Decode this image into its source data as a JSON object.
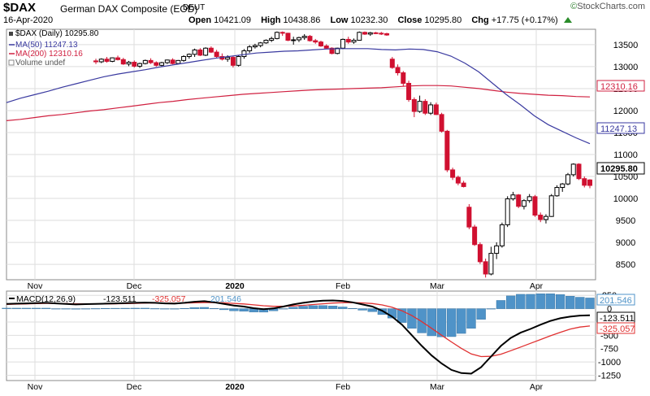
{
  "header": {
    "symbol": "$DAX",
    "name": "German DAX Composite (EOD)",
    "exchange": "DEUT",
    "date": "16-Apr-2020",
    "open_label": "Open",
    "open": "10421.09",
    "high_label": "High",
    "high": "10438.86",
    "low_label": "Low",
    "low": "10232.30",
    "close_label": "Close",
    "close": "10295.80",
    "chg_label": "Chg",
    "chg": "+17.75 (+0.17%)",
    "brand": "StockCharts.com"
  },
  "legend": {
    "price": "$DAX (Daily) 10295.80",
    "ma50": "MA(50) 11247.13",
    "ma200": "MA(200) 12310.16",
    "volume": "Volume undef",
    "macd_label": "MACD(12,26,9)",
    "macd_v1": "-123.511",
    "macd_v2": "-325.057",
    "macd_v3": "201.546"
  },
  "tags": {
    "ma200": "12310.16",
    "ma50": "11247.13",
    "close": "10295.80",
    "hist": "201.546",
    "macd": "-123.511",
    "signal": "-325.057"
  },
  "colors": {
    "up": "#000000",
    "down": "#d01030",
    "ma50": "#3a3aa0",
    "ma200": "#d02040",
    "macd": "#000000",
    "signal": "#e03030",
    "hist": "#4f93c8",
    "grid": "#dddddd"
  },
  "chart_data": [
    {
      "type": "candlestick",
      "title": "$DAX (Daily)",
      "x_ticks": [
        "Nov",
        "Dec",
        "2020",
        "Feb",
        "Mar",
        "Apr"
      ],
      "y_ticks": [
        8500,
        9000,
        9500,
        10000,
        10500,
        11000,
        11500,
        12000,
        12500,
        13000,
        13500
      ],
      "ylim": [
        8150,
        13850
      ],
      "series": [
        {
          "name": "MA(50)",
          "values": [
            12180,
            12280,
            12360,
            12440,
            12530,
            12610,
            12690,
            12770,
            12830,
            12880,
            12930,
            12990,
            13040,
            13090,
            13140,
            13190,
            13230,
            13270,
            13310,
            13330,
            13350,
            13360,
            13380,
            13400,
            13410,
            13410,
            13410,
            13390,
            13380,
            13400,
            13390,
            13340,
            13240,
            13080,
            12880,
            12620,
            12360,
            12130,
            11880,
            11680,
            11530,
            11380,
            11247
          ]
        },
        {
          "name": "MA(200)",
          "values": [
            11770,
            11800,
            11840,
            11880,
            11910,
            11950,
            11990,
            12020,
            12060,
            12100,
            12140,
            12180,
            12210,
            12250,
            12280,
            12310,
            12340,
            12370,
            12390,
            12410,
            12430,
            12450,
            12470,
            12480,
            12490,
            12500,
            12510,
            12520,
            12540,
            12560,
            12570,
            12570,
            12560,
            12530,
            12500,
            12460,
            12420,
            12390,
            12370,
            12350,
            12340,
            12320,
            12310
          ]
        }
      ],
      "candles": [
        [
          13130,
          13180,
          13060,
          13110
        ],
        [
          13110,
          13190,
          13080,
          13170
        ],
        [
          13170,
          13220,
          13090,
          13120
        ],
        [
          13120,
          13210,
          13100,
          13200
        ],
        [
          13200,
          13250,
          13140,
          13160
        ],
        [
          13160,
          13200,
          13040,
          13060
        ],
        [
          13060,
          13130,
          13010,
          13100
        ],
        [
          13100,
          13140,
          12980,
          13010
        ],
        [
          13010,
          13090,
          12970,
          13070
        ],
        [
          13070,
          13160,
          13050,
          13140
        ],
        [
          13140,
          13190,
          13060,
          13090
        ],
        [
          13090,
          13120,
          13000,
          13030
        ],
        [
          13030,
          13110,
          13000,
          13090
        ],
        [
          13090,
          13160,
          13060,
          13150
        ],
        [
          13150,
          13190,
          13050,
          13070
        ],
        [
          13070,
          13150,
          13060,
          13140
        ],
        [
          13140,
          13260,
          13110,
          13230
        ],
        [
          13230,
          13300,
          13180,
          13280
        ],
        [
          13280,
          13410,
          13220,
          13380
        ],
        [
          13380,
          13420,
          13240,
          13260
        ],
        [
          13260,
          13440,
          13240,
          13420
        ],
        [
          13420,
          13460,
          13310,
          13330
        ],
        [
          13330,
          13380,
          13190,
          13230
        ],
        [
          13230,
          13300,
          13140,
          13170
        ],
        [
          13170,
          13260,
          13110,
          13210
        ],
        [
          13210,
          13240,
          12980,
          13030
        ],
        [
          13030,
          13260,
          13000,
          13230
        ],
        [
          13230,
          13400,
          13180,
          13360
        ],
        [
          13360,
          13490,
          13310,
          13450
        ],
        [
          13450,
          13520,
          13410,
          13480
        ],
        [
          13480,
          13560,
          13440,
          13540
        ],
        [
          13540,
          13620,
          13520,
          13600
        ],
        [
          13600,
          13680,
          13560,
          13640
        ],
        [
          13640,
          13800,
          13620,
          13780
        ],
        [
          13780,
          13800,
          13700,
          13760
        ],
        [
          13760,
          13770,
          13580,
          13600
        ],
        [
          13600,
          13680,
          13500,
          13610
        ],
        [
          13610,
          13680,
          13560,
          13660
        ],
        [
          13660,
          13740,
          13610,
          13690
        ],
        [
          13690,
          13720,
          13570,
          13590
        ],
        [
          13590,
          13630,
          13520,
          13560
        ],
        [
          13560,
          13590,
          13450,
          13470
        ],
        [
          13470,
          13510,
          13400,
          13420
        ],
        [
          13420,
          13440,
          13280,
          13300
        ],
        [
          13300,
          13430,
          13280,
          13420
        ],
        [
          13420,
          13640,
          13400,
          13620
        ],
        [
          13620,
          13680,
          13520,
          13560
        ],
        [
          13560,
          13640,
          13520,
          13600
        ],
        [
          13600,
          13800,
          13590,
          13780
        ],
        [
          13780,
          13800,
          13720,
          13740
        ],
        [
          13740,
          13790,
          13700,
          13770
        ],
        [
          13770,
          13790,
          13740,
          13760
        ],
        [
          13760,
          13790,
          13720,
          13750
        ],
        [
          13750,
          13770,
          13700,
          13720
        ],
        [
          13170,
          13220,
          12950,
          12980
        ],
        [
          12980,
          13050,
          12800,
          12860
        ],
        [
          12860,
          12900,
          12550,
          12620
        ],
        [
          12620,
          12680,
          12200,
          12250
        ],
        [
          12250,
          12300,
          11850,
          11980
        ],
        [
          11980,
          12340,
          11950,
          12210
        ],
        [
          12210,
          12260,
          11900,
          11940
        ],
        [
          11940,
          12190,
          11900,
          12130
        ],
        [
          12130,
          12180,
          11900,
          11910
        ],
        [
          11910,
          11950,
          11500,
          11530
        ],
        [
          11530,
          11560,
          10600,
          10650
        ],
        [
          10650,
          10700,
          10420,
          10480
        ],
        [
          10480,
          10520,
          10300,
          10350
        ],
        [
          10350,
          10400,
          10250,
          10270
        ],
        [
          9800,
          9870,
          9300,
          9350
        ],
        [
          9350,
          9400,
          8920,
          8950
        ],
        [
          8950,
          9000,
          8510,
          8560
        ],
        [
          8560,
          8630,
          8200,
          8280
        ],
        [
          8280,
          8900,
          8250,
          8750
        ],
        [
          8750,
          9000,
          8620,
          8920
        ],
        [
          8920,
          9450,
          8880,
          9400
        ],
        [
          9400,
          10050,
          9350,
          9990
        ],
        [
          9990,
          10150,
          9950,
          10080
        ],
        [
          10080,
          10100,
          9780,
          9820
        ],
        [
          9820,
          9980,
          9750,
          9950
        ],
        [
          9950,
          10100,
          9900,
          10040
        ],
        [
          10040,
          10080,
          9580,
          9620
        ],
        [
          9620,
          9680,
          9460,
          9520
        ],
        [
          9520,
          9640,
          9430,
          9590
        ],
        [
          9590,
          10100,
          9580,
          10060
        ],
        [
          10060,
          10300,
          10040,
          10250
        ],
        [
          10250,
          10350,
          10150,
          10330
        ],
        [
          10330,
          10580,
          10300,
          10540
        ],
        [
          10540,
          10800,
          10500,
          10780
        ],
        [
          10780,
          10800,
          10420,
          10450
        ],
        [
          10450,
          10500,
          10250,
          10300
        ],
        [
          10421,
          10439,
          10232,
          10296
        ]
      ]
    },
    {
      "type": "line",
      "title": "MACD(12,26,9)",
      "x_ticks": [
        "Nov",
        "Dec",
        "2020",
        "Feb",
        "Mar",
        "Apr"
      ],
      "y_ticks": [
        250,
        0,
        -250,
        -500,
        -750,
        -1000,
        -1250
      ],
      "ylim": [
        -1350,
        330
      ],
      "series": [
        {
          "name": "MACD",
          "values": [
            90,
            95,
            100,
            105,
            110,
            100,
            90,
            80,
            85,
            90,
            95,
            100,
            105,
            110,
            115,
            110,
            100,
            95,
            110,
            130,
            140,
            120,
            90,
            60,
            40,
            10,
            -10,
            5,
            40,
            80,
            110,
            135,
            150,
            155,
            145,
            120,
            80,
            40,
            -40,
            -150,
            -300,
            -500,
            -700,
            -880,
            -1030,
            -1150,
            -1210,
            -1220,
            -1100,
            -900,
            -700,
            -550,
            -450,
            -380,
            -300,
            -230,
            -180,
            -150,
            -130,
            -123.5
          ]
        },
        {
          "name": "Signal",
          "values": [
            80,
            85,
            90,
            95,
            100,
            100,
            95,
            90,
            88,
            88,
            90,
            92,
            96,
            100,
            105,
            108,
            106,
            103,
            105,
            110,
            115,
            116,
            110,
            100,
            88,
            72,
            55,
            45,
            44,
            52,
            63,
            78,
            92,
            105,
            113,
            114,
            108,
            96,
            70,
            26,
            -40,
            -130,
            -245,
            -370,
            -500,
            -625,
            -745,
            -850,
            -900,
            -895,
            -855,
            -790,
            -720,
            -650,
            -580,
            -510,
            -445,
            -385,
            -345,
            -325
          ]
        },
        {
          "name": "Histogram",
          "values": [
            10,
            10,
            10,
            10,
            10,
            0,
            -5,
            -10,
            -3,
            2,
            5,
            8,
            9,
            10,
            10,
            2,
            -6,
            -8,
            5,
            20,
            25,
            4,
            -20,
            -40,
            -48,
            -62,
            -65,
            -40,
            -4,
            28,
            47,
            57,
            58,
            50,
            32,
            6,
            -28,
            -56,
            -110,
            -176,
            -260,
            -370,
            -455,
            -510,
            -530,
            -525,
            -465,
            -370,
            -200,
            -5,
            155,
            240,
            270,
            270,
            280,
            280,
            265,
            235,
            215,
            201.5
          ]
        }
      ]
    }
  ]
}
